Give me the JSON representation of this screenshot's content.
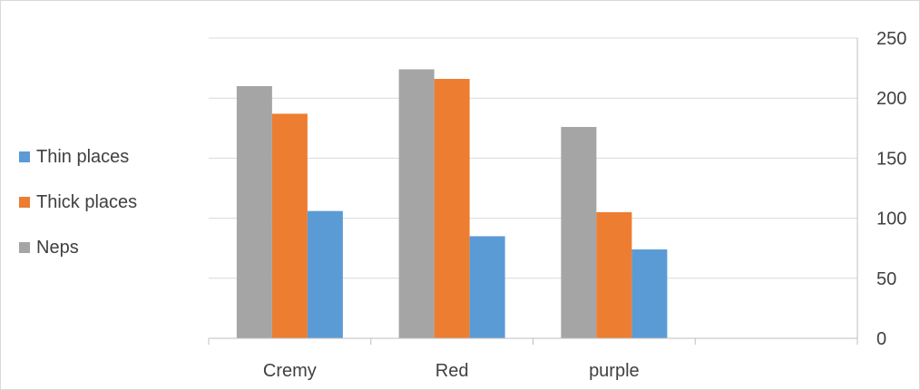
{
  "chart_data": {
    "type": "bar",
    "categories": [
      "Cremy",
      "Red",
      "purple",
      ""
    ],
    "series": [
      {
        "name": "Neps",
        "color": "#A5A5A5",
        "values": [
          210,
          224,
          176,
          null
        ]
      },
      {
        "name": "Thick places",
        "color": "#ED7D31",
        "values": [
          187,
          216,
          105,
          null
        ]
      },
      {
        "name": "Thin places",
        "color": "#5B9BD5",
        "values": [
          106,
          85,
          74,
          null
        ]
      }
    ],
    "legend": [
      {
        "name": "Thin places",
        "color": "#5B9BD5"
      },
      {
        "name": "Thick places",
        "color": "#ED7D31"
      },
      {
        "name": "Neps",
        "color": "#A5A5A5"
      }
    ],
    "legend_position": "left",
    "y_axis_position": "right",
    "ylim": [
      0,
      250
    ],
    "yticks": [
      0,
      50,
      100,
      150,
      200,
      250
    ],
    "grid": true,
    "gridline_color": "#D9D9D9",
    "axis_color": "#BFBFBF",
    "title": "",
    "xlabel": "",
    "ylabel": ""
  }
}
